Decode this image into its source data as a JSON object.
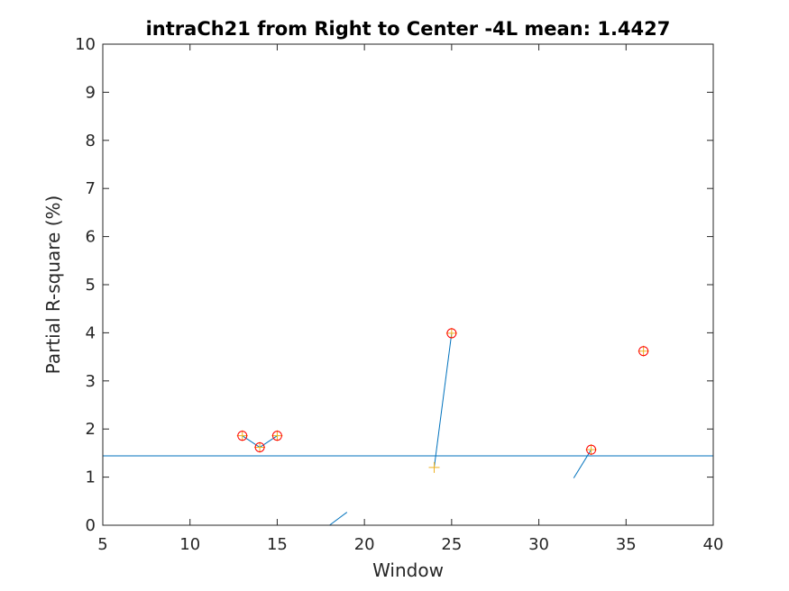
{
  "chart_data": {
    "type": "line",
    "title": "intraCh21 from Right to Center -4L mean: 1.4427",
    "xlabel": "Window",
    "ylabel": "Partial R-square (%)",
    "xlim": [
      5,
      40
    ],
    "ylim": [
      0,
      10
    ],
    "xticks": [
      5,
      10,
      15,
      20,
      25,
      30,
      35,
      40
    ],
    "yticks": [
      0,
      1,
      2,
      3,
      4,
      5,
      6,
      7,
      8,
      9,
      10
    ],
    "grid": false,
    "legend": "none",
    "mean_line": {
      "y": 1.4427,
      "color": "#0072BD"
    },
    "line_segments": [
      {
        "x": [
          13,
          14,
          15
        ],
        "y": [
          1.86,
          1.62,
          1.86
        ]
      },
      {
        "x": [
          18,
          19
        ],
        "y": [
          0.0,
          0.27
        ]
      },
      {
        "x": [
          24,
          25
        ],
        "y": [
          1.2,
          3.99
        ]
      },
      {
        "x": [
          32,
          33
        ],
        "y": [
          0.98,
          1.57
        ]
      }
    ],
    "plus_markers": {
      "color": "#EDB120",
      "x": [
        13,
        14,
        15,
        24,
        25,
        33,
        36
      ],
      "y": [
        1.86,
        1.62,
        1.86,
        1.2,
        3.99,
        1.57,
        3.62
      ]
    },
    "circle_markers": {
      "color": "#FF0000",
      "x": [
        13,
        14,
        15,
        25,
        33,
        36
      ],
      "y": [
        1.86,
        1.62,
        1.86,
        3.99,
        1.57,
        3.62
      ]
    },
    "line_color": "#0072BD"
  }
}
